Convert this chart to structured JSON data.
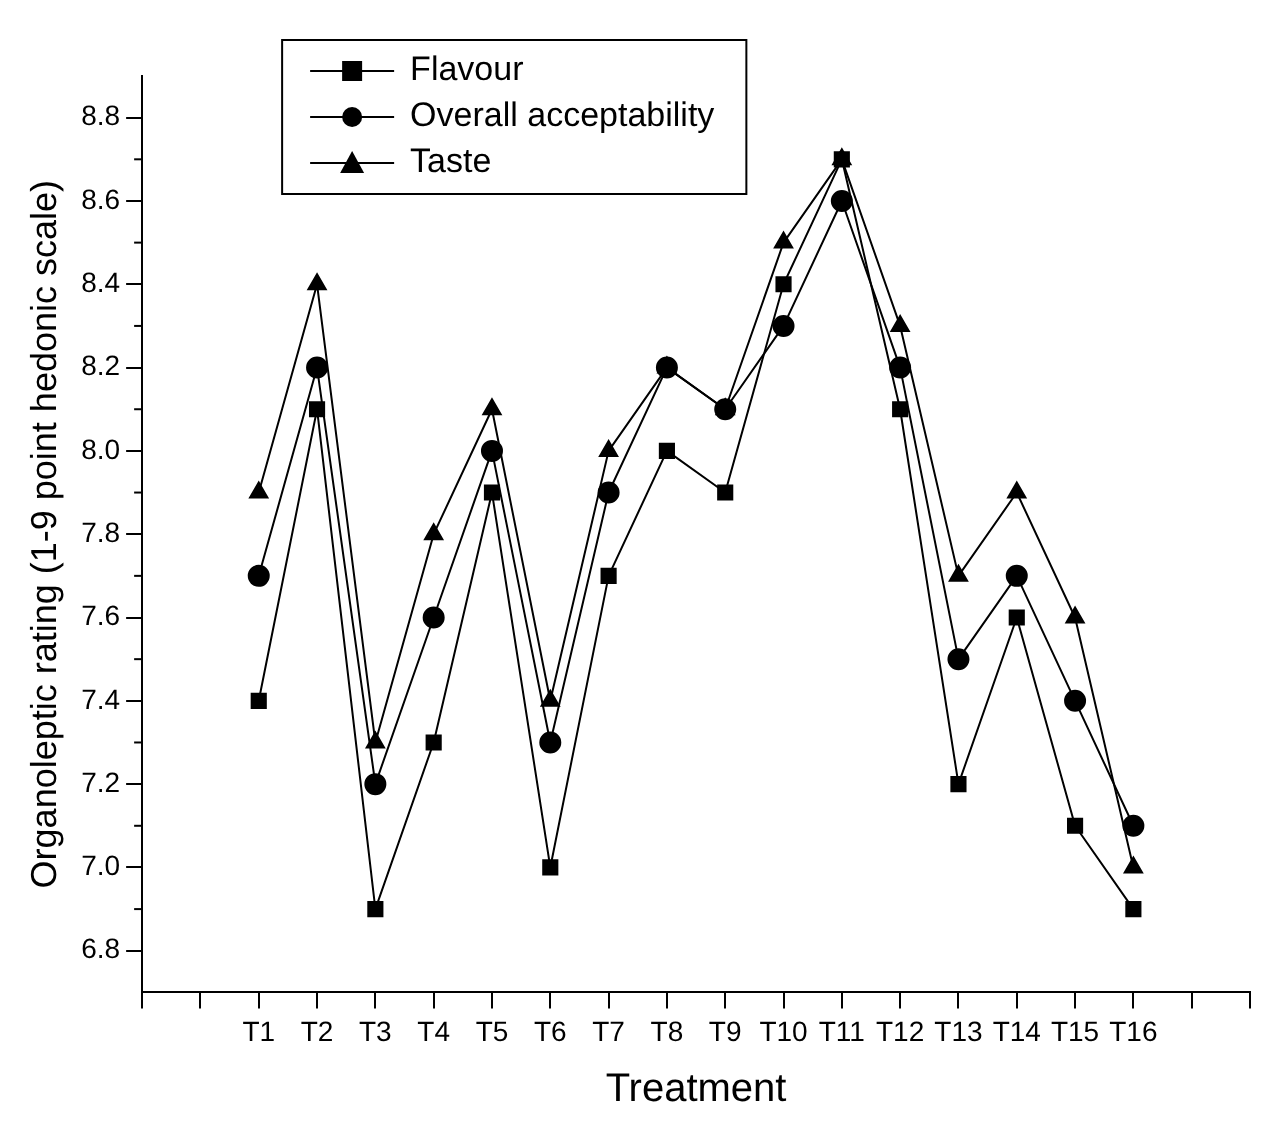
{
  "chart_data": {
    "type": "line",
    "xlabel": "Treatment",
    "ylabel": "Organoleptic rating (1-9 point hedonic scale)",
    "categories": [
      null,
      null,
      "T1",
      "T2",
      "T3",
      "T4",
      "T5",
      "T6",
      "T7",
      "T8",
      "T9",
      "T10",
      "T11",
      "T12",
      "T13",
      "T14",
      "T15",
      "T16",
      null,
      null
    ],
    "ylim": [
      6.7,
      8.9
    ],
    "yticks": [
      {
        "value": 6.8,
        "label": "6.8"
      },
      {
        "value": 7.0,
        "label": "7.0"
      },
      {
        "value": 7.2,
        "label": "7.2"
      },
      {
        "value": 7.4,
        "label": "7.4"
      },
      {
        "value": 7.6,
        "label": "7.6"
      },
      {
        "value": 7.8,
        "label": "7.8"
      },
      {
        "value": 8.0,
        "label": "8.0"
      },
      {
        "value": 8.2,
        "label": "8.2"
      },
      {
        "value": 8.4,
        "label": "8.4"
      },
      {
        "value": 8.6,
        "label": "8.6"
      },
      {
        "value": 8.8,
        "label": "8.8"
      }
    ],
    "legend": "top left",
    "series": [
      {
        "name": "Flavour",
        "color": "#000000",
        "marker": "square",
        "values": [
          null,
          null,
          7.4,
          8.1,
          6.9,
          7.3,
          7.9,
          7.0,
          7.7,
          8.0,
          7.9,
          8.4,
          8.7,
          8.1,
          7.2,
          7.6,
          7.1,
          6.9,
          null,
          null
        ]
      },
      {
        "name": "Overall acceptability",
        "color": "#000000",
        "marker": "circle",
        "values": [
          null,
          null,
          7.7,
          8.2,
          7.2,
          7.6,
          8.0,
          7.3,
          7.9,
          8.2,
          8.1,
          8.3,
          8.6,
          8.2,
          7.5,
          7.7,
          7.4,
          7.1,
          null,
          null
        ]
      },
      {
        "name": "Taste",
        "color": "#000000",
        "marker": "triangle",
        "values": [
          null,
          null,
          7.9,
          8.4,
          7.3,
          7.8,
          8.1,
          7.4,
          8.0,
          8.2,
          8.1,
          8.5,
          8.7,
          8.3,
          7.7,
          7.9,
          7.6,
          7.0,
          null,
          null
        ]
      }
    ]
  }
}
